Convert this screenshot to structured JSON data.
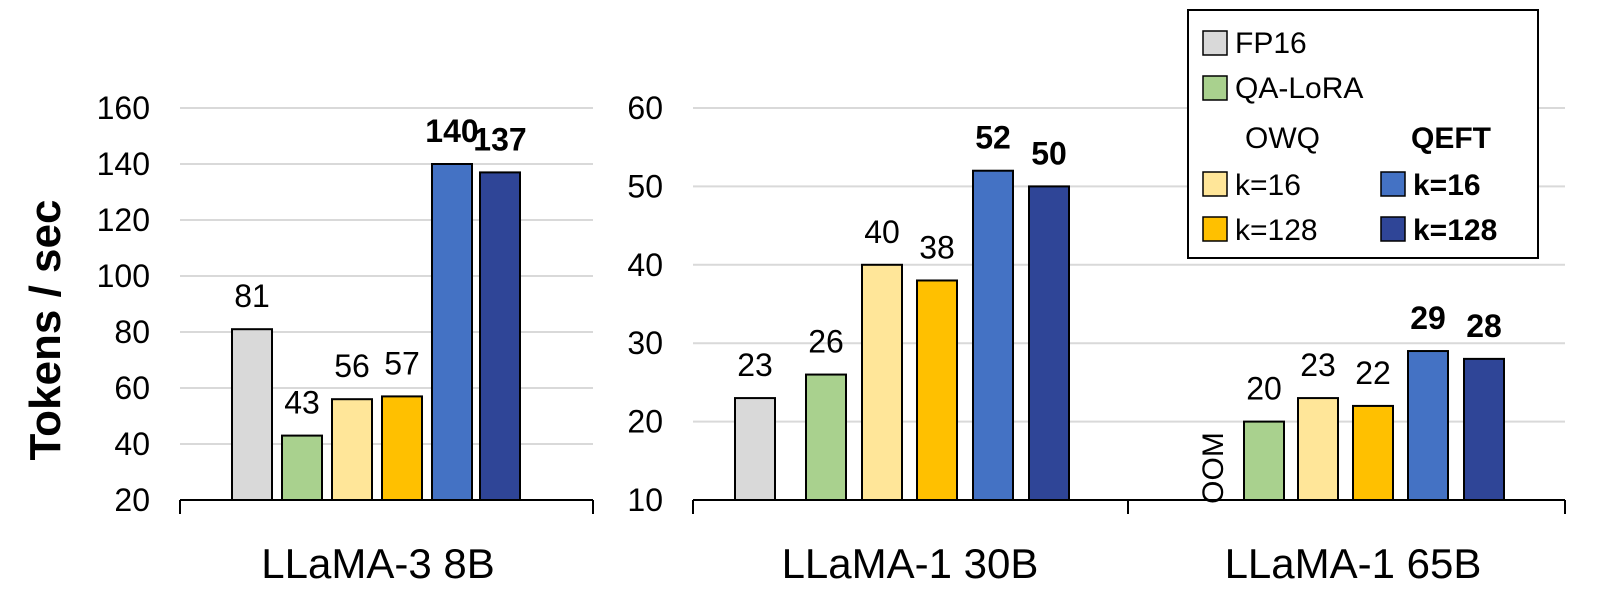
{
  "colors": {
    "fp16": "#D9D9D9",
    "qalora": "#A9D18E",
    "owq_k16": "#FFE699",
    "owq_k128": "#FFC000",
    "qeft_k16": "#4472C4",
    "qeft_k128": "#2F4597",
    "grid": "#D9D9D9",
    "axis": "#000000"
  },
  "legend": {
    "fp16": "FP16",
    "qalora": "QA-LoRA",
    "owq_header": "OWQ",
    "qeft_header": "QEFT",
    "owq_k16": "k=16",
    "owq_k128": "k=128",
    "qeft_k16": "k=16",
    "qeft_k128": "k=128"
  },
  "chart_data": [
    {
      "type": "bar",
      "title": "LLaMA-3 8B",
      "ylabel": "Tokens / sec",
      "ylim": [
        20,
        160
      ],
      "yticks": [
        20,
        40,
        60,
        80,
        100,
        120,
        140,
        160
      ],
      "series": [
        {
          "name": "FP16",
          "value": 81,
          "label": "81",
          "bold": false
        },
        {
          "name": "QA-LoRA",
          "value": 43,
          "label": "43",
          "bold": false
        },
        {
          "name": "OWQ k=16",
          "value": 56,
          "label": "56",
          "bold": false
        },
        {
          "name": "OWQ k=128",
          "value": 57,
          "label": "57",
          "bold": false
        },
        {
          "name": "QEFT k=16",
          "value": 140,
          "label": "140",
          "bold": true
        },
        {
          "name": "QEFT k=128",
          "value": 137,
          "label": "137",
          "bold": true
        }
      ]
    },
    {
      "type": "bar",
      "title": "LLaMA-1 30B",
      "ylim": [
        10,
        60
      ],
      "yticks": [
        10,
        20,
        30,
        40,
        50,
        60
      ],
      "series": [
        {
          "name": "FP16",
          "value": 23,
          "label": "23",
          "bold": false
        },
        {
          "name": "QA-LoRA",
          "value": 26,
          "label": "26",
          "bold": false
        },
        {
          "name": "OWQ k=16",
          "value": 40,
          "label": "40",
          "bold": false
        },
        {
          "name": "OWQ k=128",
          "value": 38,
          "label": "38",
          "bold": false
        },
        {
          "name": "QEFT k=16",
          "value": 52,
          "label": "52",
          "bold": true
        },
        {
          "name": "QEFT k=128",
          "value": 50,
          "label": "50",
          "bold": true
        }
      ]
    },
    {
      "type": "bar",
      "title": "LLaMA-1 65B",
      "ylim": [
        10,
        60
      ],
      "yticks": [
        10,
        20,
        30,
        40,
        50,
        60
      ],
      "series": [
        {
          "name": "FP16",
          "value": null,
          "label": "OOM",
          "bold": false
        },
        {
          "name": "QA-LoRA",
          "value": 20,
          "label": "20",
          "bold": false
        },
        {
          "name": "OWQ k=16",
          "value": 23,
          "label": "23",
          "bold": false
        },
        {
          "name": "OWQ k=128",
          "value": 22,
          "label": "22",
          "bold": false
        },
        {
          "name": "QEFT k=16",
          "value": 29,
          "label": "29",
          "bold": true
        },
        {
          "name": "QEFT k=128",
          "value": 28,
          "label": "28",
          "bold": true
        }
      ]
    }
  ]
}
